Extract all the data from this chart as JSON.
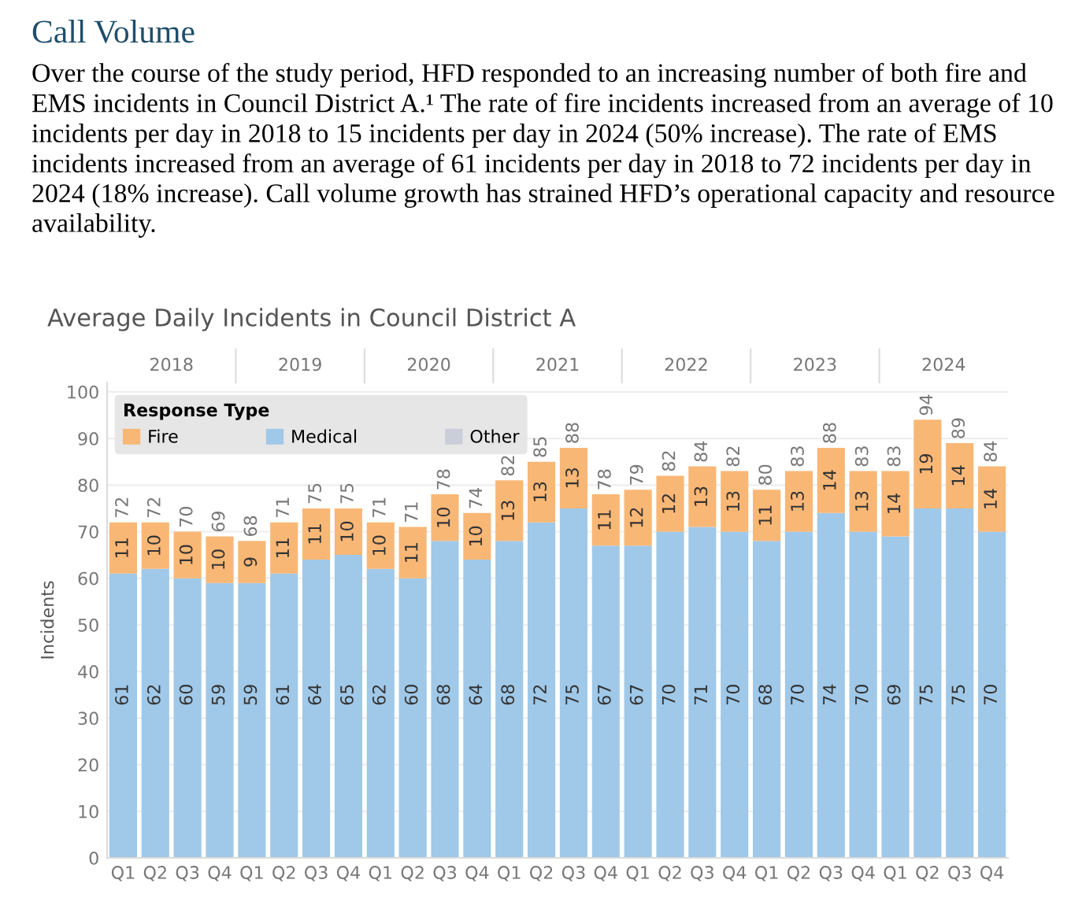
{
  "chart_data": {
    "type": "bar",
    "stacked": true,
    "title": "Average Daily Incidents in Council District A",
    "ylabel": "Incidents",
    "legend_title": "Response Type",
    "legend": "top left",
    "annotations": [
      "Call Volume",
      "Over the course of the study period, HFD responded to an increasing number of both fire and EMS incidents in Council District A.¹ The rate of fire incidents increased from an average of 10 incidents per day in 2018 to 15 incidents per day in 2024 (50% increase). The rate of EMS incidents increased from an average of 61 incidents per day in 2018 to 72 incidents per day in 2024 (18% increase). Call volume growth has strained HFD’s operational capacity and resource availability.",
      "2018",
      "2019",
      "2020",
      "2021",
      "2022",
      "2023",
      "2024"
    ],
    "categories": [
      "Q1",
      "Q2",
      "Q3",
      "Q4",
      "Q1",
      "Q2",
      "Q3",
      "Q4",
      "Q1",
      "Q2",
      "Q3",
      "Q4",
      "Q1",
      "Q2",
      "Q3",
      "Q4",
      "Q1",
      "Q2",
      "Q3",
      "Q4",
      "Q1",
      "Q2",
      "Q3",
      "Q4",
      "Q1",
      "Q2",
      "Q3",
      "Q4"
    ],
    "series": [
      {
        "name": "Medical",
        "color": "#a0c8e8",
        "values": [
          61,
          62,
          60,
          59,
          59,
          61,
          64,
          65,
          62,
          60,
          68,
          64,
          68,
          72,
          75,
          67,
          67,
          70,
          71,
          70,
          68,
          70,
          74,
          70,
          69,
          75,
          75,
          70
        ]
      },
      {
        "name": "Fire",
        "color": "#f9b776",
        "values": [
          11,
          10,
          10,
          10,
          9,
          11,
          11,
          10,
          10,
          11,
          10,
          10,
          13,
          13,
          13,
          11,
          12,
          12,
          13,
          13,
          11,
          13,
          14,
          13,
          14,
          19,
          14,
          14
        ]
      },
      {
        "name": "Other",
        "color": "#c9ced8",
        "values": [
          null,
          null,
          null,
          null,
          null,
          null,
          null,
          null,
          null,
          null,
          null,
          null,
          null,
          null,
          null,
          null,
          null,
          null,
          null,
          null,
          null,
          null,
          null,
          null,
          null,
          null,
          null,
          null
        ]
      }
    ],
    "totals": [
      "72",
      "72",
      "70",
      "69",
      "68",
      "71",
      "75",
      "75",
      "71",
      "71",
      "78",
      "74",
      "82",
      "85",
      "88",
      "78",
      "79",
      "82",
      "84",
      "82",
      "80",
      "83",
      "88",
      "83",
      "83",
      "94",
      "89",
      "84"
    ],
    "data_labels": true,
    "ylim": [
      0,
      102
    ],
    "yticks": [
      0,
      10,
      20,
      30,
      40,
      50,
      60,
      70,
      80,
      90,
      100
    ],
    "grid": "y"
  }
}
